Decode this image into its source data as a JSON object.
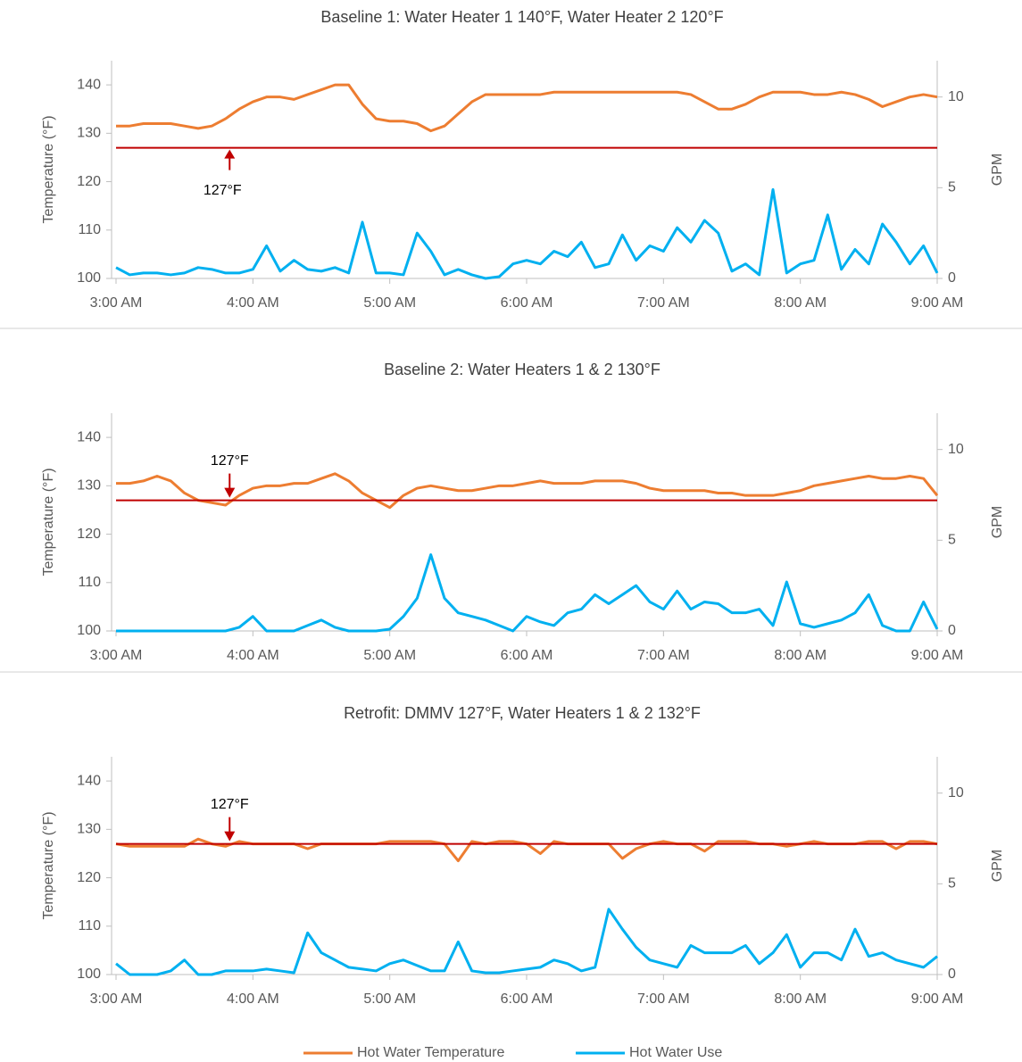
{
  "chart_data": [
    {
      "type": "line",
      "title": "Baseline 1: Water Heater 1 140°F, Water Heater 2  120°F",
      "legend": "bottom",
      "ylabel": "Temperature (°F)",
      "y2label": "GPM",
      "x": [
        3.0,
        3.1,
        3.2,
        3.3,
        3.4,
        3.5,
        3.6,
        3.7,
        3.8,
        3.9,
        4.0,
        4.1,
        4.2,
        4.3,
        4.4,
        4.5,
        4.6,
        4.7,
        4.8,
        4.9,
        5.0,
        5.1,
        5.2,
        5.3,
        5.4,
        5.5,
        5.6,
        5.7,
        5.8,
        5.9,
        6.0,
        6.1,
        6.2,
        6.3,
        6.4,
        6.5,
        6.6,
        6.7,
        6.8,
        6.9,
        7.0,
        7.1,
        7.2,
        7.3,
        7.4,
        7.5,
        7.6,
        7.7,
        7.8,
        7.9,
        8.0,
        8.1,
        8.2,
        8.3,
        8.4,
        8.5,
        8.6,
        8.7,
        8.8,
        8.9,
        9.0
      ],
      "xlim": [
        3,
        9
      ],
      "xticks": [
        {
          "value": 3,
          "label": "3:00 AM"
        },
        {
          "value": 4,
          "label": "4:00 AM"
        },
        {
          "value": 5,
          "label": "5:00 AM"
        },
        {
          "value": 6,
          "label": "6:00 AM"
        },
        {
          "value": 7,
          "label": "7:00 AM"
        },
        {
          "value": 8,
          "label": "8:00 AM"
        },
        {
          "value": 9,
          "label": "9:00 AM"
        }
      ],
      "ylim": [
        100,
        145
      ],
      "yticks": [
        100,
        110,
        120,
        130,
        140
      ],
      "y2lim": [
        0,
        12
      ],
      "y2ticks": [
        0,
        5,
        10
      ],
      "series": [
        {
          "name": "Hot Water Temperature",
          "color": "#ed7d31",
          "axis": "y",
          "values": [
            131.5,
            131.5,
            132,
            132,
            132,
            131.5,
            131,
            131.5,
            133,
            135,
            136.5,
            137.5,
            137.5,
            137,
            138,
            139,
            140,
            140,
            136,
            133,
            132.5,
            132.5,
            132,
            130.5,
            131.5,
            134,
            136.5,
            138,
            138,
            138,
            138,
            138,
            138.5,
            138.5,
            138.5,
            138.5,
            138.5,
            138.5,
            138.5,
            138.5,
            138.5,
            138.5,
            138,
            136.5,
            135,
            135,
            136,
            137.5,
            138.5,
            138.5,
            138.5,
            138,
            138,
            138.5,
            138,
            137,
            135.5,
            136.5,
            137.5,
            138,
            137.5
          ]
        },
        {
          "name": "Hot Water Use",
          "color": "#00b0f0",
          "axis": "y2",
          "values": [
            0.6,
            0.2,
            0.3,
            0.3,
            0.2,
            0.3,
            0.6,
            0.5,
            0.3,
            0.3,
            0.5,
            1.8,
            0.4,
            1.0,
            0.5,
            0.4,
            0.6,
            0.3,
            3.1,
            0.3,
            0.3,
            0.2,
            2.5,
            1.5,
            0.2,
            0.5,
            0.2,
            0.0,
            0.1,
            0.8,
            1.0,
            0.8,
            1.5,
            1.2,
            2.0,
            0.6,
            0.8,
            2.4,
            1.0,
            1.8,
            1.5,
            2.8,
            2.0,
            3.2,
            2.5,
            0.4,
            0.8,
            0.2,
            4.9,
            0.3,
            0.8,
            1.0,
            3.5,
            0.5,
            1.6,
            0.8,
            3.0,
            2.0,
            0.8,
            1.8,
            0.3
          ]
        }
      ],
      "reference_line": {
        "value": 127,
        "color": "#c00000"
      },
      "annotation": {
        "text": "127°F",
        "x": 3.83,
        "arrow": "up"
      }
    },
    {
      "type": "line",
      "title": "Baseline 2: Water Heaters 1 & 2 130°F",
      "ylabel": "Temperature (°F)",
      "y2label": "GPM",
      "x": [
        3.0,
        3.1,
        3.2,
        3.3,
        3.4,
        3.5,
        3.6,
        3.7,
        3.8,
        3.9,
        4.0,
        4.1,
        4.2,
        4.3,
        4.4,
        4.5,
        4.6,
        4.7,
        4.8,
        4.9,
        5.0,
        5.1,
        5.2,
        5.3,
        5.4,
        5.5,
        5.6,
        5.7,
        5.8,
        5.9,
        6.0,
        6.1,
        6.2,
        6.3,
        6.4,
        6.5,
        6.6,
        6.7,
        6.8,
        6.9,
        7.0,
        7.1,
        7.2,
        7.3,
        7.4,
        7.5,
        7.6,
        7.7,
        7.8,
        7.9,
        8.0,
        8.1,
        8.2,
        8.3,
        8.4,
        8.5,
        8.6,
        8.7,
        8.8,
        8.9,
        9.0
      ],
      "xlim": [
        3,
        9
      ],
      "xticks": [
        {
          "value": 3,
          "label": "3:00 AM"
        },
        {
          "value": 4,
          "label": "4:00 AM"
        },
        {
          "value": 5,
          "label": "5:00 AM"
        },
        {
          "value": 6,
          "label": "6:00 AM"
        },
        {
          "value": 7,
          "label": "7:00 AM"
        },
        {
          "value": 8,
          "label": "8:00 AM"
        },
        {
          "value": 9,
          "label": "9:00 AM"
        }
      ],
      "ylim": [
        100,
        145
      ],
      "yticks": [
        100,
        110,
        120,
        130,
        140
      ],
      "y2lim": [
        0,
        12
      ],
      "y2ticks": [
        0,
        5,
        10
      ],
      "series": [
        {
          "name": "Hot Water Temperature",
          "color": "#ed7d31",
          "axis": "y",
          "values": [
            130.5,
            130.5,
            131,
            132,
            131,
            128.5,
            127,
            126.5,
            126,
            128,
            129.5,
            130,
            130,
            130.5,
            130.5,
            131.5,
            132.5,
            131,
            128.5,
            127,
            125.5,
            128,
            129.5,
            130,
            129.5,
            129,
            129,
            129.5,
            130,
            130,
            130.5,
            131,
            130.5,
            130.5,
            130.5,
            131,
            131,
            131,
            130.5,
            129.5,
            129,
            129,
            129,
            129,
            128.5,
            128.5,
            128,
            128,
            128,
            128.5,
            129,
            130,
            130.5,
            131,
            131.5,
            132,
            131.5,
            131.5,
            132,
            131.5,
            128
          ]
        },
        {
          "name": "Hot Water Use",
          "color": "#00b0f0",
          "axis": "y2",
          "values": [
            0,
            0,
            0,
            0,
            0,
            0,
            0,
            0,
            0,
            0.2,
            0.8,
            0,
            0,
            0,
            0.3,
            0.6,
            0.2,
            0,
            0,
            0,
            0.1,
            0.8,
            1.8,
            4.2,
            1.8,
            1.0,
            0.8,
            0.6,
            0.3,
            0.0,
            0.8,
            0.5,
            0.3,
            1.0,
            1.2,
            2.0,
            1.5,
            2.0,
            2.5,
            1.6,
            1.2,
            2.2,
            1.2,
            1.6,
            1.5,
            1.0,
            1.0,
            1.2,
            0.3,
            2.7,
            0.4,
            0.2,
            0.4,
            0.6,
            1.0,
            2.0,
            0.3,
            0,
            0,
            1.6,
            0.1
          ]
        }
      ],
      "reference_line": {
        "value": 127,
        "color": "#c00000"
      },
      "annotation": {
        "text": "127°F",
        "x": 3.83,
        "arrow": "down"
      }
    },
    {
      "type": "line",
      "title": "Retrofit: DMMV 127°F, Water Heaters 1 & 2 132°F",
      "ylabel": "Temperature (°F)",
      "y2label": "GPM",
      "x": [
        3.0,
        3.1,
        3.2,
        3.3,
        3.4,
        3.5,
        3.6,
        3.7,
        3.8,
        3.9,
        4.0,
        4.1,
        4.2,
        4.3,
        4.4,
        4.5,
        4.6,
        4.7,
        4.8,
        4.9,
        5.0,
        5.1,
        5.2,
        5.3,
        5.4,
        5.5,
        5.6,
        5.7,
        5.8,
        5.9,
        6.0,
        6.1,
        6.2,
        6.3,
        6.4,
        6.5,
        6.6,
        6.7,
        6.8,
        6.9,
        7.0,
        7.1,
        7.2,
        7.3,
        7.4,
        7.5,
        7.6,
        7.7,
        7.8,
        7.9,
        8.0,
        8.1,
        8.2,
        8.3,
        8.4,
        8.5,
        8.6,
        8.7,
        8.8,
        8.9,
        9.0
      ],
      "xlim": [
        3,
        9
      ],
      "xticks": [
        {
          "value": 3,
          "label": "3:00 AM"
        },
        {
          "value": 4,
          "label": "4:00 AM"
        },
        {
          "value": 5,
          "label": "5:00 AM"
        },
        {
          "value": 6,
          "label": "6:00 AM"
        },
        {
          "value": 7,
          "label": "7:00 AM"
        },
        {
          "value": 8,
          "label": "8:00 AM"
        },
        {
          "value": 9,
          "label": "9:00 AM"
        }
      ],
      "ylim": [
        100,
        145
      ],
      "yticks": [
        100,
        110,
        120,
        130,
        140
      ],
      "y2lim": [
        0,
        12
      ],
      "y2ticks": [
        0,
        5,
        10
      ],
      "series": [
        {
          "name": "Hot Water Temperature",
          "color": "#ed7d31",
          "axis": "y",
          "values": [
            127,
            126.5,
            126.5,
            126.5,
            126.5,
            126.5,
            128,
            127,
            126.5,
            127.5,
            127,
            127,
            127,
            127,
            126,
            127,
            127,
            127,
            127,
            127,
            127.5,
            127.5,
            127.5,
            127.5,
            127,
            123.5,
            127.5,
            127,
            127.5,
            127.5,
            127,
            125,
            127.5,
            127,
            127,
            127,
            127,
            124,
            126,
            127,
            127.5,
            127,
            127,
            125.5,
            127.5,
            127.5,
            127.5,
            127,
            127,
            126.5,
            127,
            127.5,
            127,
            127,
            127,
            127.5,
            127.5,
            126,
            127.5,
            127.5,
            127
          ]
        },
        {
          "name": "Hot Water Use",
          "color": "#00b0f0",
          "axis": "y2",
          "values": [
            0.6,
            0,
            0,
            0,
            0.2,
            0.8,
            0,
            0,
            0.2,
            0.2,
            0.2,
            0.3,
            0.2,
            0.1,
            2.3,
            1.2,
            0.8,
            0.4,
            0.3,
            0.2,
            0.6,
            0.8,
            0.5,
            0.2,
            0.2,
            1.8,
            0.2,
            0.1,
            0.1,
            0.2,
            0.3,
            0.4,
            0.8,
            0.6,
            0.2,
            0.4,
            3.6,
            2.5,
            1.5,
            0.8,
            0.6,
            0.4,
            1.6,
            1.2,
            1.2,
            1.2,
            1.6,
            0.6,
            1.2,
            2.2,
            0.4,
            1.2,
            1.2,
            0.8,
            2.5,
            1.0,
            1.2,
            0.8,
            0.6,
            0.4,
            1.0
          ]
        }
      ],
      "reference_line": {
        "value": 127,
        "color": "#c00000"
      },
      "annotation": {
        "text": "127°F",
        "x": 3.83,
        "arrow": "down"
      }
    }
  ]
}
